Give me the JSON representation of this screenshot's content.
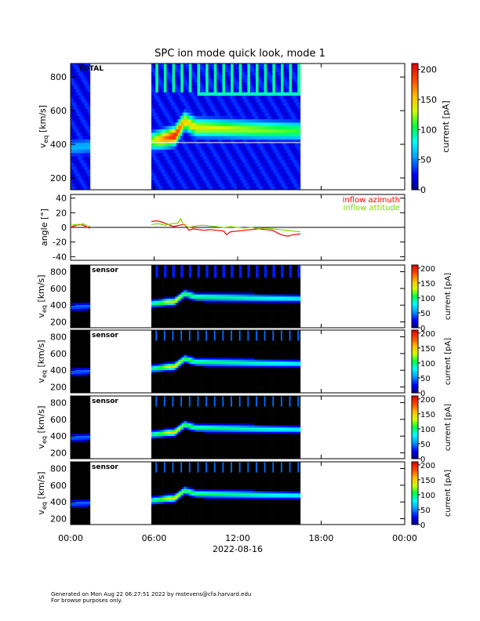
{
  "chart_data": {
    "type": "heatmap",
    "title": "SPC ion mode quick look, mode 1",
    "x_tick_labels": [
      "00:00",
      "06:00",
      "12:00",
      "18:00",
      "00:00"
    ],
    "x_tick_hours": [
      0,
      6,
      12,
      18,
      24
    ],
    "xlabel": "2022-08-16",
    "xlim_hours": [
      0,
      24
    ],
    "data_coverage_hours": [
      [
        0.0,
        1.4
      ],
      [
        5.8,
        16.5
      ]
    ],
    "panels": [
      {
        "id": "total",
        "label": "TOTAL",
        "ylabel": "v_eq [km/s]",
        "ylabel_main": "v",
        "ylabel_sub": "eq",
        "ylabel_unit": " [km/s]",
        "ylim": [
          130,
          880
        ],
        "yticks": [
          200,
          400,
          600,
          800
        ],
        "ytick_labels": [
          "200",
          "400",
          "600",
          "800"
        ],
        "colorbar": {
          "label": "current [pA]",
          "ticks": [
            0,
            50,
            100,
            150,
            200
          ],
          "tick_labels": [
            "0",
            "50",
            "100",
            "150",
            "200"
          ],
          "range": [
            0,
            210
          ]
        },
        "peak_track": [
          {
            "t": 0.0,
            "v": 380,
            "amp": 60
          },
          {
            "t": 1.4,
            "v": 390,
            "amp": 60
          },
          {
            "t": 5.8,
            "v": 420,
            "amp": 120
          },
          {
            "t": 6.5,
            "v": 430,
            "amp": 160
          },
          {
            "t": 7.5,
            "v": 450,
            "amp": 200
          },
          {
            "t": 8.2,
            "v": 540,
            "amp": 150
          },
          {
            "t": 9.0,
            "v": 500,
            "amp": 140
          },
          {
            "t": 11.0,
            "v": 495,
            "amp": 130
          },
          {
            "t": 14.0,
            "v": 485,
            "amp": 120
          },
          {
            "t": 16.5,
            "v": 480,
            "amp": 110
          }
        ]
      },
      {
        "id": "sensor-1",
        "label": "sensor",
        "ylabel_main": "v",
        "ylabel_sub": "eq",
        "ylabel_unit": " [km/s]",
        "ylim": [
          130,
          880
        ],
        "yticks": [
          200,
          400,
          600,
          800
        ],
        "ytick_labels": [
          "200",
          "400",
          "600",
          "800"
        ],
        "colorbar": {
          "label": "current [pA]",
          "ticks": [
            0,
            50,
            100,
            150,
            200
          ],
          "tick_labels": [
            "0",
            "50",
            "100",
            "150",
            "200"
          ],
          "range": [
            0,
            210
          ]
        }
      },
      {
        "id": "sensor-2",
        "label": "sensor",
        "ylabel_main": "v",
        "ylabel_sub": "eq",
        "ylabel_unit": " [km/s]",
        "ylim": [
          130,
          880
        ],
        "yticks": [
          200,
          400,
          600,
          800
        ],
        "ytick_labels": [
          "200",
          "400",
          "600",
          "800"
        ],
        "colorbar": {
          "label": "current [pA]",
          "ticks": [
            0,
            50,
            100,
            150,
            200
          ],
          "tick_labels": [
            "0",
            "50",
            "100",
            "150",
            "200"
          ],
          "range": [
            0,
            210
          ]
        }
      },
      {
        "id": "sensor-3",
        "label": "sensor",
        "ylabel_main": "v",
        "ylabel_sub": "eq",
        "ylabel_unit": " [km/s]",
        "ylim": [
          130,
          880
        ],
        "yticks": [
          200,
          400,
          600,
          800
        ],
        "ytick_labels": [
          "200",
          "400",
          "600",
          "800"
        ],
        "colorbar": {
          "label": "current [pA]",
          "ticks": [
            0,
            50,
            100,
            150,
            200
          ],
          "tick_labels": [
            "0",
            "50",
            "100",
            "150",
            "200"
          ],
          "range": [
            0,
            210
          ]
        }
      },
      {
        "id": "sensor-4",
        "label": "sensor",
        "ylabel_main": "v",
        "ylabel_sub": "eq",
        "ylabel_unit": " [km/s]",
        "ylim": [
          130,
          880
        ],
        "yticks": [
          200,
          400,
          600,
          800
        ],
        "ytick_labels": [
          "200",
          "400",
          "600",
          "800"
        ],
        "colorbar": {
          "label": "current [pA]",
          "ticks": [
            0,
            50,
            100,
            150,
            200
          ],
          "tick_labels": [
            "0",
            "50",
            "100",
            "150",
            "200"
          ],
          "range": [
            0,
            210
          ]
        }
      }
    ],
    "angle_panel": {
      "type": "line",
      "ylabel": "angle [°]",
      "ylim": [
        -45,
        45
      ],
      "yticks": [
        -40,
        -20,
        0,
        20,
        40
      ],
      "ytick_labels": [
        "-40",
        "-20",
        "0",
        "20",
        "40"
      ],
      "zero_line": true,
      "series": [
        {
          "name": "inflow azimuth",
          "color": "#ff0000",
          "points": [
            [
              0.0,
              0
            ],
            [
              0.3,
              2
            ],
            [
              0.6,
              4
            ],
            [
              0.9,
              3
            ],
            [
              1.2,
              0
            ],
            [
              1.4,
              -1
            ],
            [
              5.8,
              8
            ],
            [
              6.2,
              9
            ],
            [
              6.6,
              7
            ],
            [
              7.0,
              4
            ],
            [
              7.4,
              1
            ],
            [
              7.8,
              3
            ],
            [
              8.2,
              4
            ],
            [
              8.5,
              -4
            ],
            [
              8.8,
              -2
            ],
            [
              9.2,
              -3
            ],
            [
              9.6,
              -4
            ],
            [
              10.0,
              -3
            ],
            [
              10.5,
              -4
            ],
            [
              11.0,
              -5
            ],
            [
              11.2,
              -10
            ],
            [
              11.5,
              -6
            ],
            [
              12.0,
              -5
            ],
            [
              12.5,
              -4
            ],
            [
              13.0,
              -3
            ],
            [
              13.5,
              -2
            ],
            [
              14.0,
              -3
            ],
            [
              14.5,
              -4
            ],
            [
              15.0,
              -9
            ],
            [
              15.3,
              -11
            ],
            [
              15.6,
              -12
            ],
            [
              16.0,
              -10
            ],
            [
              16.5,
              -9
            ]
          ]
        },
        {
          "name": "inflow attitude",
          "color": "#7cd400",
          "points": [
            [
              0.0,
              2
            ],
            [
              0.3,
              4
            ],
            [
              0.6,
              3
            ],
            [
              0.9,
              5
            ],
            [
              1.2,
              2
            ],
            [
              1.4,
              1
            ],
            [
              5.8,
              4
            ],
            [
              6.3,
              5
            ],
            [
              6.8,
              3
            ],
            [
              7.3,
              5
            ],
            [
              7.7,
              6
            ],
            [
              7.9,
              12
            ],
            [
              8.1,
              4
            ],
            [
              8.5,
              0
            ],
            [
              9.0,
              2
            ],
            [
              9.5,
              3
            ],
            [
              10.0,
              2
            ],
            [
              10.5,
              1
            ],
            [
              11.0,
              0
            ],
            [
              11.5,
              1
            ],
            [
              12.0,
              0
            ],
            [
              12.5,
              -1
            ],
            [
              13.0,
              0
            ],
            [
              13.5,
              -2
            ],
            [
              14.0,
              -1
            ],
            [
              14.5,
              -2
            ],
            [
              15.0,
              -3
            ],
            [
              15.5,
              -4
            ],
            [
              16.0,
              -5
            ],
            [
              16.5,
              -6
            ]
          ]
        }
      ]
    }
  },
  "footer": {
    "line1": "Generated on Mon Aug 22 06:27:51 2022 by mstevens@cfa.harvard.edu",
    "line2": "For browse purposes only."
  }
}
